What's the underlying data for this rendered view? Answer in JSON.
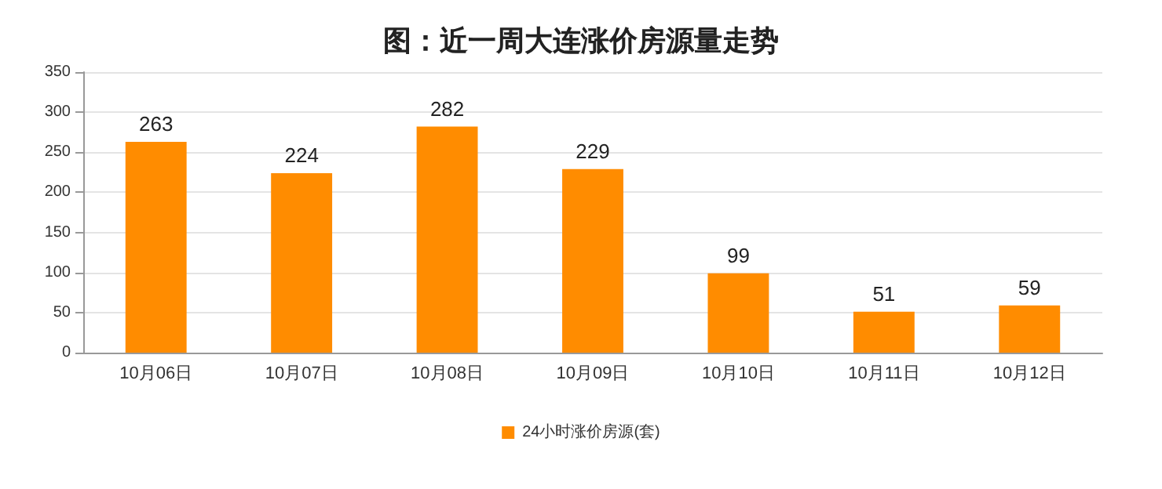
{
  "chart_data": {
    "type": "bar",
    "title": "图：近一周大连涨价房源量走势",
    "categories": [
      "10月06日",
      "10月07日",
      "10月08日",
      "10月09日",
      "10月10日",
      "10月11日",
      "10月12日"
    ],
    "series": [
      {
        "name": "24小时涨价房源(套)",
        "color": "#ff8c00",
        "values": [
          263,
          224,
          282,
          229,
          99,
          51,
          59
        ]
      }
    ],
    "ylim": [
      0,
      350
    ],
    "yticks": [
      0,
      50,
      100,
      150,
      200,
      250,
      300,
      350
    ],
    "grid": "y",
    "legend": "bottom",
    "data_labels": true
  }
}
